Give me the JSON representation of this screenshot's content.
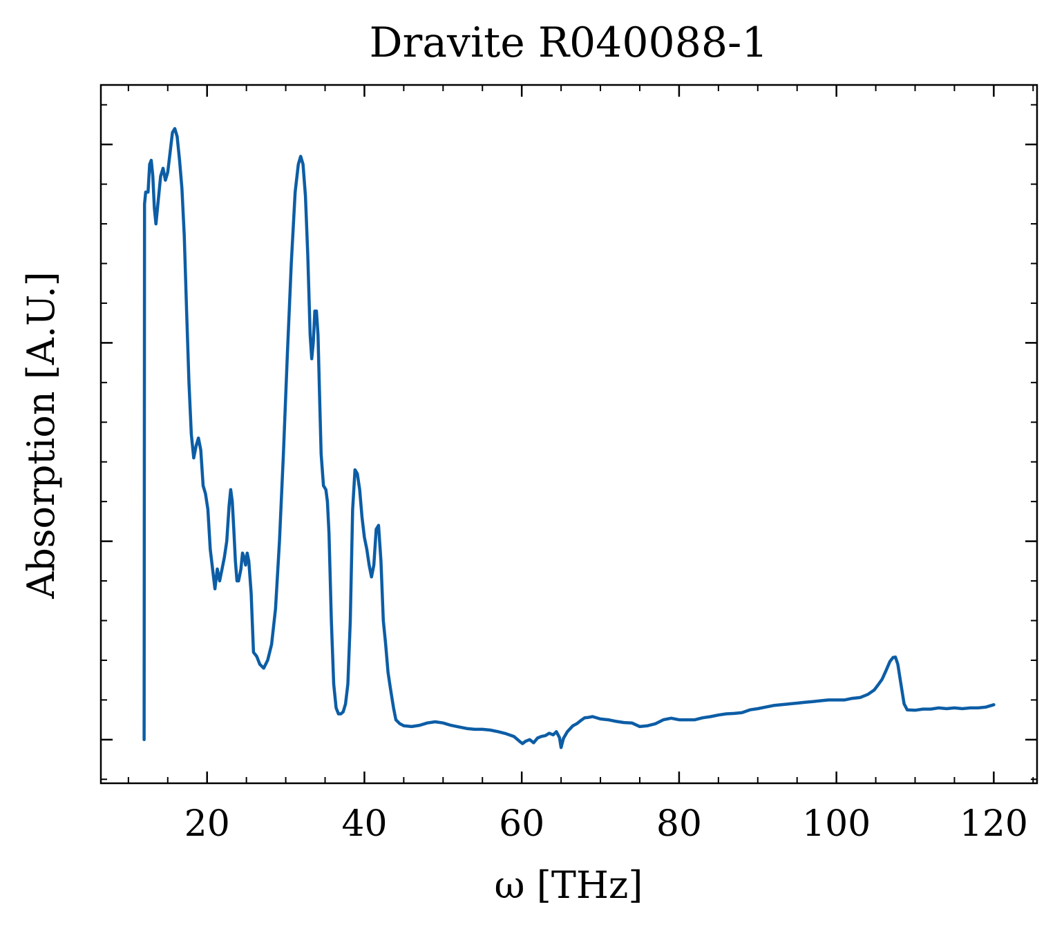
{
  "chart_data": {
    "type": "line",
    "title": "Dravite R040088-1",
    "xlabel": "ω [THz]",
    "ylabel": "Absorption [A.U.]",
    "xlim": [
      6.5,
      125.5
    ],
    "ylim": [
      -0.11,
      1.65
    ],
    "x_ticks": [
      20,
      40,
      60,
      80,
      100,
      120
    ],
    "x_tick_labels": [
      "20",
      "40",
      "60",
      "80",
      "100",
      "120"
    ],
    "y_ticks": [
      0,
      0.5,
      1.0,
      1.5
    ],
    "y_tick_labels_shown": false,
    "grid": false,
    "legend": "none",
    "series": [
      {
        "color": "#0C5DA5",
        "points": [
          [
            12.0,
            0.0
          ],
          [
            12.05,
            1.35
          ],
          [
            12.2,
            1.38
          ],
          [
            12.5,
            1.38
          ],
          [
            12.7,
            1.45
          ],
          [
            12.9,
            1.46
          ],
          [
            13.1,
            1.42
          ],
          [
            13.3,
            1.34
          ],
          [
            13.5,
            1.3
          ],
          [
            13.8,
            1.36
          ],
          [
            14.1,
            1.42
          ],
          [
            14.4,
            1.44
          ],
          [
            14.7,
            1.41
          ],
          [
            15.0,
            1.43
          ],
          [
            15.3,
            1.48
          ],
          [
            15.6,
            1.53
          ],
          [
            15.9,
            1.54
          ],
          [
            16.2,
            1.52
          ],
          [
            16.5,
            1.46
          ],
          [
            16.8,
            1.39
          ],
          [
            17.1,
            1.27
          ],
          [
            17.4,
            1.08
          ],
          [
            17.7,
            0.9
          ],
          [
            18.0,
            0.77
          ],
          [
            18.3,
            0.71
          ],
          [
            18.6,
            0.74
          ],
          [
            18.9,
            0.76
          ],
          [
            19.2,
            0.73
          ],
          [
            19.5,
            0.64
          ],
          [
            19.8,
            0.62
          ],
          [
            20.1,
            0.58
          ],
          [
            20.4,
            0.48
          ],
          [
            20.7,
            0.43
          ],
          [
            21.0,
            0.38
          ],
          [
            21.3,
            0.43
          ],
          [
            21.6,
            0.4
          ],
          [
            21.9,
            0.43
          ],
          [
            22.2,
            0.46
          ],
          [
            22.5,
            0.5
          ],
          [
            22.8,
            0.59
          ],
          [
            23.0,
            0.63
          ],
          [
            23.2,
            0.6
          ],
          [
            23.4,
            0.53
          ],
          [
            23.6,
            0.45
          ],
          [
            23.8,
            0.4
          ],
          [
            24.0,
            0.4
          ],
          [
            24.3,
            0.43
          ],
          [
            24.5,
            0.47
          ],
          [
            24.7,
            0.46
          ],
          [
            24.9,
            0.44
          ],
          [
            25.1,
            0.47
          ],
          [
            25.3,
            0.45
          ],
          [
            25.6,
            0.37
          ],
          [
            25.9,
            0.22
          ],
          [
            26.3,
            0.21
          ],
          [
            26.7,
            0.19
          ],
          [
            27.2,
            0.18
          ],
          [
            27.7,
            0.2
          ],
          [
            28.2,
            0.24
          ],
          [
            28.7,
            0.33
          ],
          [
            29.2,
            0.5
          ],
          [
            29.7,
            0.72
          ],
          [
            30.2,
            0.97
          ],
          [
            30.7,
            1.2
          ],
          [
            31.2,
            1.38
          ],
          [
            31.6,
            1.45
          ],
          [
            31.9,
            1.47
          ],
          [
            32.2,
            1.45
          ],
          [
            32.5,
            1.37
          ],
          [
            32.8,
            1.22
          ],
          [
            33.1,
            1.02
          ],
          [
            33.3,
            0.96
          ],
          [
            33.5,
            1.0
          ],
          [
            33.7,
            1.08
          ],
          [
            33.9,
            1.08
          ],
          [
            34.1,
            1.02
          ],
          [
            34.3,
            0.87
          ],
          [
            34.5,
            0.72
          ],
          [
            34.8,
            0.64
          ],
          [
            35.1,
            0.63
          ],
          [
            35.3,
            0.6
          ],
          [
            35.5,
            0.52
          ],
          [
            35.8,
            0.3
          ],
          [
            36.1,
            0.14
          ],
          [
            36.4,
            0.08
          ],
          [
            36.7,
            0.065
          ],
          [
            37.0,
            0.065
          ],
          [
            37.3,
            0.07
          ],
          [
            37.6,
            0.09
          ],
          [
            37.9,
            0.14
          ],
          [
            38.2,
            0.3
          ],
          [
            38.5,
            0.58
          ],
          [
            38.8,
            0.68
          ],
          [
            39.1,
            0.67
          ],
          [
            39.4,
            0.63
          ],
          [
            39.7,
            0.56
          ],
          [
            40.0,
            0.51
          ],
          [
            40.3,
            0.48
          ],
          [
            40.6,
            0.44
          ],
          [
            40.9,
            0.41
          ],
          [
            41.2,
            0.44
          ],
          [
            41.5,
            0.53
          ],
          [
            41.8,
            0.54
          ],
          [
            42.1,
            0.45
          ],
          [
            42.4,
            0.3
          ],
          [
            42.7,
            0.24
          ],
          [
            43.0,
            0.17
          ],
          [
            43.3,
            0.13
          ],
          [
            43.7,
            0.08
          ],
          [
            44.0,
            0.05
          ],
          [
            44.5,
            0.04
          ],
          [
            45.0,
            0.035
          ],
          [
            46.0,
            0.033
          ],
          [
            47.0,
            0.036
          ],
          [
            48.0,
            0.042
          ],
          [
            49.0,
            0.045
          ],
          [
            50.0,
            0.042
          ],
          [
            51.0,
            0.036
          ],
          [
            52.0,
            0.032
          ],
          [
            53.0,
            0.028
          ],
          [
            54.0,
            0.026
          ],
          [
            55.0,
            0.026
          ],
          [
            56.0,
            0.024
          ],
          [
            57.0,
            0.02
          ],
          [
            58.0,
            0.015
          ],
          [
            59.0,
            0.008
          ],
          [
            59.7,
            -0.004
          ],
          [
            60.1,
            -0.01
          ],
          [
            60.5,
            -0.004
          ],
          [
            61.0,
            0.0
          ],
          [
            61.5,
            -0.008
          ],
          [
            62.0,
            0.004
          ],
          [
            62.5,
            0.008
          ],
          [
            63.0,
            0.01
          ],
          [
            63.5,
            0.016
          ],
          [
            64.0,
            0.012
          ],
          [
            64.4,
            0.02
          ],
          [
            64.8,
            0.005
          ],
          [
            65.0,
            -0.02
          ],
          [
            65.3,
            0.003
          ],
          [
            65.8,
            0.02
          ],
          [
            66.5,
            0.035
          ],
          [
            67.0,
            0.04
          ],
          [
            67.5,
            0.048
          ],
          [
            68.0,
            0.055
          ],
          [
            68.5,
            0.056
          ],
          [
            69.0,
            0.058
          ],
          [
            70.0,
            0.052
          ],
          [
            71.0,
            0.05
          ],
          [
            72.0,
            0.046
          ],
          [
            73.0,
            0.043
          ],
          [
            74.0,
            0.042
          ],
          [
            75.0,
            0.033
          ],
          [
            76.0,
            0.035
          ],
          [
            77.0,
            0.04
          ],
          [
            78.0,
            0.05
          ],
          [
            79.0,
            0.054
          ],
          [
            80.0,
            0.05
          ],
          [
            81.0,
            0.05
          ],
          [
            82.0,
            0.05
          ],
          [
            83.0,
            0.055
          ],
          [
            84.0,
            0.058
          ],
          [
            85.0,
            0.062
          ],
          [
            86.0,
            0.065
          ],
          [
            87.0,
            0.066
          ],
          [
            88.0,
            0.068
          ],
          [
            89.0,
            0.075
          ],
          [
            90.0,
            0.078
          ],
          [
            91.0,
            0.082
          ],
          [
            92.0,
            0.086
          ],
          [
            93.0,
            0.088
          ],
          [
            94.0,
            0.09
          ],
          [
            95.0,
            0.092
          ],
          [
            96.0,
            0.094
          ],
          [
            97.0,
            0.096
          ],
          [
            98.0,
            0.098
          ],
          [
            99.0,
            0.1
          ],
          [
            100.0,
            0.1
          ],
          [
            101.0,
            0.1
          ],
          [
            102.0,
            0.104
          ],
          [
            103.0,
            0.106
          ],
          [
            104.0,
            0.114
          ],
          [
            104.8,
            0.125
          ],
          [
            105.3,
            0.138
          ],
          [
            105.8,
            0.152
          ],
          [
            106.3,
            0.174
          ],
          [
            106.8,
            0.197
          ],
          [
            107.2,
            0.207
          ],
          [
            107.5,
            0.208
          ],
          [
            107.8,
            0.19
          ],
          [
            108.2,
            0.14
          ],
          [
            108.6,
            0.09
          ],
          [
            109.0,
            0.075
          ],
          [
            110.0,
            0.074
          ],
          [
            111.0,
            0.077
          ],
          [
            112.0,
            0.077
          ],
          [
            113.0,
            0.08
          ],
          [
            114.0,
            0.078
          ],
          [
            115.0,
            0.08
          ],
          [
            116.0,
            0.078
          ],
          [
            117.0,
            0.08
          ],
          [
            118.0,
            0.08
          ],
          [
            119.0,
            0.082
          ],
          [
            120.0,
            0.088
          ]
        ]
      }
    ]
  }
}
